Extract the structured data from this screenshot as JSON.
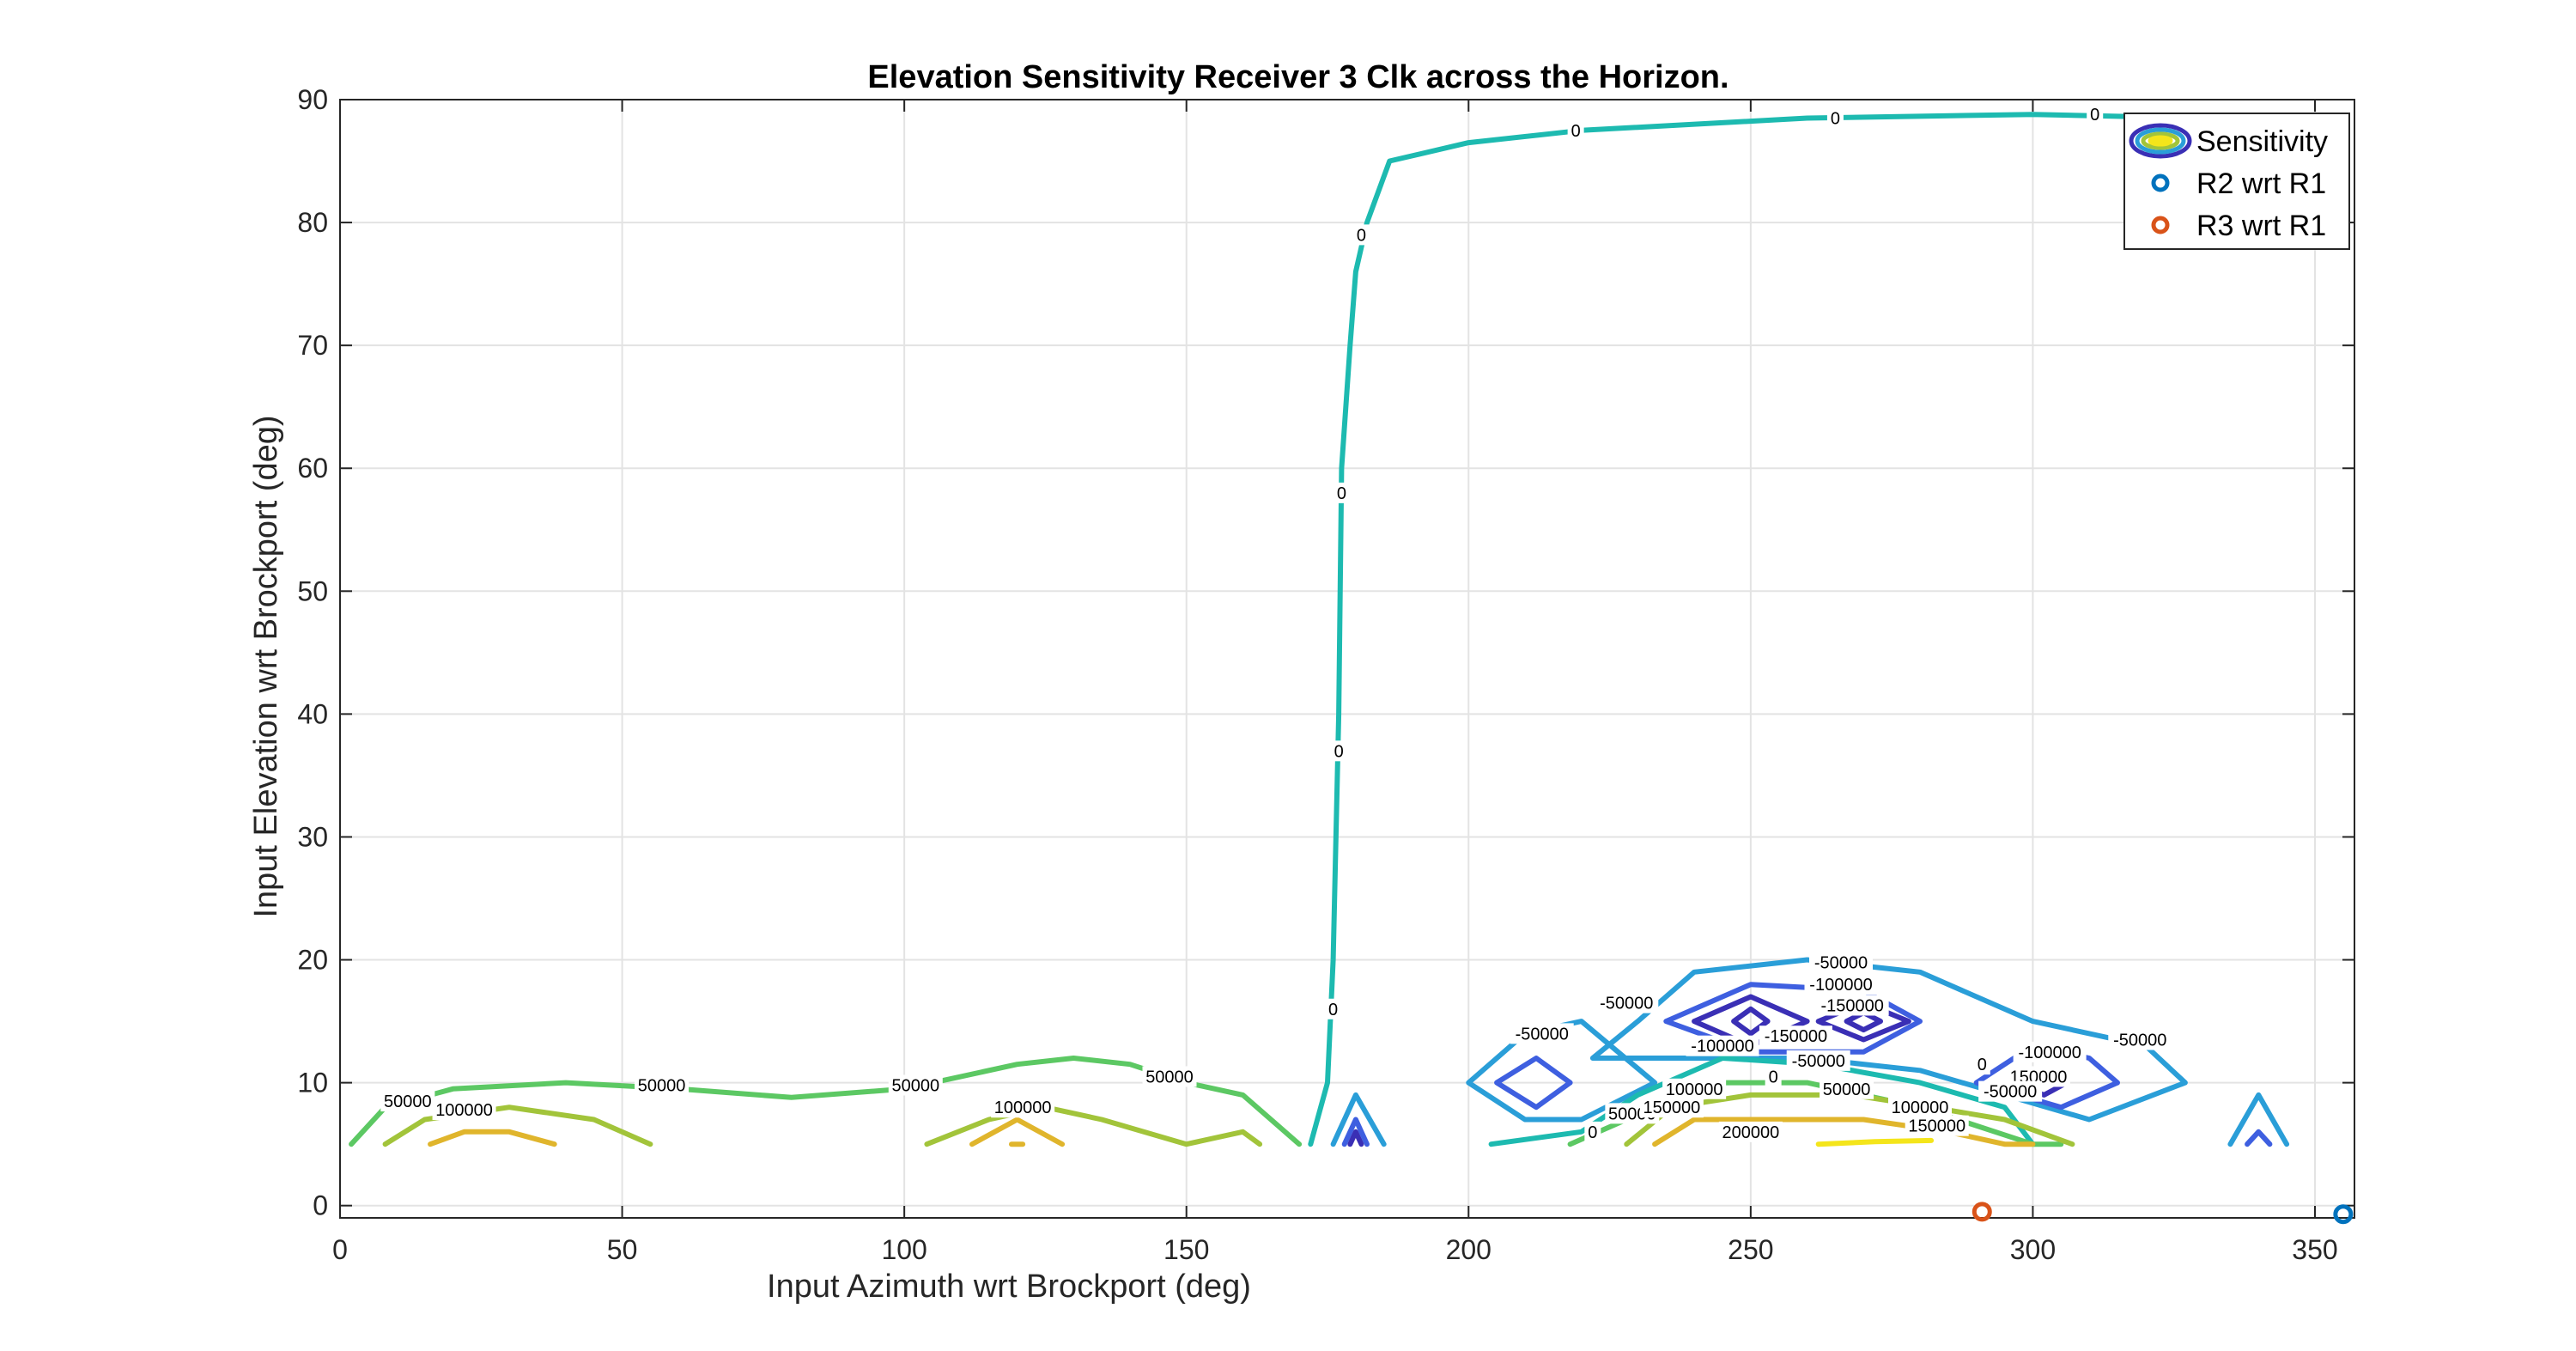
{
  "chart_data": {
    "type": "contour",
    "title": "Elevation Sensitivity Receiver 3 Clk across the Horizon.",
    "xlabel": "Input Azimuth wrt Brockport (deg)",
    "ylabel": "Input Elevation wrt Brockport (deg)",
    "xlim": [
      0,
      357
    ],
    "ylim": [
      -1,
      90
    ],
    "xticks": [
      0,
      50,
      100,
      150,
      200,
      250,
      300,
      350
    ],
    "yticks": [
      0,
      10,
      20,
      30,
      40,
      50,
      60,
      70,
      80,
      90
    ],
    "grid": true,
    "legend_position": "top-right",
    "legend": [
      {
        "label": "Sensitivity",
        "kind": "contour-swatch"
      },
      {
        "label": "R2 wrt R1",
        "kind": "marker",
        "color": "#0072BD"
      },
      {
        "label": "R3 wrt R1",
        "kind": "marker",
        "color": "#D95319"
      }
    ],
    "level_colors": {
      "-150000": "#3a2fb5",
      "-100000": "#3e5fe0",
      "-50000": "#2a9ed8",
      "0": "#1dbab0",
      "50000": "#5cc863",
      "100000": "#a2c43a",
      "150000": "#e0b52c",
      "200000": "#f4e51b"
    },
    "contours": [
      {
        "level": 0,
        "points": [
          [
            172,
            5
          ],
          [
            175,
            10
          ],
          [
            176,
            20
          ],
          [
            177,
            40
          ],
          [
            177.5,
            60
          ],
          [
            179,
            70
          ],
          [
            180,
            76
          ],
          [
            182,
            80
          ],
          [
            186,
            85
          ],
          [
            200,
            86.5
          ],
          [
            220,
            87.5
          ],
          [
            260,
            88.5
          ],
          [
            300,
            88.8
          ],
          [
            330,
            88.5
          ],
          [
            345,
            88
          ],
          [
            350,
            79
          ]
        ]
      },
      {
        "level": 50000,
        "points": [
          [
            2,
            5
          ],
          [
            8,
            8
          ],
          [
            20,
            9.5
          ],
          [
            40,
            10
          ],
          [
            60,
            9.5
          ],
          [
            80,
            8.8
          ],
          [
            100,
            9.5
          ],
          [
            120,
            11.5
          ],
          [
            130,
            12
          ],
          [
            140,
            11.5
          ],
          [
            150,
            10
          ],
          [
            160,
            9
          ],
          [
            170,
            5
          ]
        ]
      },
      {
        "level": 100000,
        "points": [
          [
            8,
            5
          ],
          [
            15,
            7
          ],
          [
            30,
            8
          ],
          [
            45,
            7
          ],
          [
            55,
            5
          ]
        ]
      },
      {
        "level": 100000,
        "points": [
          [
            104,
            5
          ],
          [
            115,
            7
          ],
          [
            125,
            8
          ],
          [
            135,
            7
          ],
          [
            150,
            5
          ],
          [
            160,
            6
          ],
          [
            163,
            5
          ]
        ]
      },
      {
        "level": 150000,
        "points": [
          [
            16,
            5
          ],
          [
            22,
            6
          ],
          [
            30,
            6
          ],
          [
            38,
            5
          ]
        ]
      },
      {
        "level": 150000,
        "points": [
          [
            112,
            5
          ],
          [
            120,
            7
          ],
          [
            128,
            5
          ]
        ]
      },
      {
        "level": 150000,
        "points": [
          [
            119,
            5
          ],
          [
            121,
            5
          ]
        ]
      },
      {
        "level": -50000,
        "points": [
          [
            176,
            5
          ],
          [
            180,
            9
          ],
          [
            185,
            5
          ]
        ]
      },
      {
        "level": -100000,
        "points": [
          [
            178,
            5
          ],
          [
            180,
            7
          ],
          [
            182,
            5
          ]
        ]
      },
      {
        "level": -150000,
        "points": [
          [
            179,
            5
          ],
          [
            180,
            6
          ],
          [
            181,
            5
          ]
        ]
      },
      {
        "level": -50000,
        "points": [
          [
            200,
            10
          ],
          [
            210,
            14
          ],
          [
            220,
            15
          ],
          [
            233,
            10
          ],
          [
            220,
            7
          ],
          [
            210,
            7
          ],
          [
            200,
            10
          ]
        ]
      },
      {
        "level": -100000,
        "points": [
          [
            205,
            10
          ],
          [
            212,
            12
          ],
          [
            218,
            10
          ],
          [
            212,
            8
          ],
          [
            205,
            10
          ]
        ]
      },
      {
        "level": -50000,
        "points": [
          [
            222,
            12
          ],
          [
            230,
            15
          ],
          [
            240,
            19
          ],
          [
            260,
            20
          ],
          [
            280,
            19
          ],
          [
            300,
            15
          ],
          [
            320,
            13
          ],
          [
            327,
            10
          ],
          [
            310,
            7
          ],
          [
            295,
            9
          ],
          [
            280,
            11
          ],
          [
            260,
            12
          ],
          [
            245,
            12
          ],
          [
            235,
            12
          ],
          [
            222,
            12
          ]
        ]
      },
      {
        "level": -100000,
        "points": [
          [
            235,
            15
          ],
          [
            250,
            18
          ],
          [
            270,
            17.5
          ],
          [
            280,
            15
          ],
          [
            270,
            12.5
          ],
          [
            250,
            12.5
          ],
          [
            235,
            15
          ]
        ]
      },
      {
        "level": -100000,
        "points": [
          [
            290,
            10
          ],
          [
            300,
            13
          ],
          [
            310,
            12
          ],
          [
            315,
            10
          ],
          [
            305,
            8
          ],
          [
            290,
            10
          ]
        ]
      },
      {
        "level": -150000,
        "points": [
          [
            240,
            15
          ],
          [
            250,
            17
          ],
          [
            260,
            15
          ],
          [
            250,
            13
          ],
          [
            240,
            15
          ]
        ]
      },
      {
        "level": -150000,
        "points": [
          [
            262,
            15
          ],
          [
            270,
            16.5
          ],
          [
            278,
            15
          ],
          [
            270,
            13.5
          ],
          [
            262,
            15
          ]
        ]
      },
      {
        "level": -150000,
        "points": [
          [
            296,
            10
          ],
          [
            302,
            11
          ],
          [
            306,
            10
          ],
          [
            302,
            9
          ],
          [
            296,
            10
          ]
        ]
      },
      {
        "level": -150000,
        "points": [
          [
            247,
            15
          ],
          [
            250,
            16
          ],
          [
            253,
            15
          ],
          [
            250,
            14
          ],
          [
            247,
            15
          ]
        ]
      },
      {
        "level": -150000,
        "points": [
          [
            267,
            15
          ],
          [
            270,
            15.7
          ],
          [
            273,
            15
          ],
          [
            270,
            14.3
          ],
          [
            267,
            15
          ]
        ]
      },
      {
        "level": -50000,
        "points": [
          [
            335,
            5
          ],
          [
            340,
            9
          ],
          [
            345,
            5
          ]
        ]
      },
      {
        "level": -100000,
        "points": [
          [
            338,
            5
          ],
          [
            340,
            6
          ],
          [
            342,
            5
          ]
        ]
      },
      {
        "level": 0,
        "points": [
          [
            204,
            5
          ],
          [
            220,
            6
          ],
          [
            230,
            9
          ],
          [
            245,
            12
          ],
          [
            262,
            11.5
          ],
          [
            280,
            10
          ],
          [
            295,
            8
          ],
          [
            300,
            5
          ]
        ]
      },
      {
        "level": 50000,
        "points": [
          [
            218,
            5
          ],
          [
            228,
            7
          ],
          [
            242,
            10
          ],
          [
            260,
            10
          ],
          [
            280,
            8
          ],
          [
            300,
            5
          ],
          [
            305,
            5
          ]
        ]
      },
      {
        "level": 100000,
        "points": [
          [
            228,
            5
          ],
          [
            236,
            8
          ],
          [
            250,
            9
          ],
          [
            268,
            9
          ],
          [
            282,
            8
          ],
          [
            295,
            7
          ],
          [
            307,
            5
          ]
        ]
      },
      {
        "level": 150000,
        "points": [
          [
            233,
            5
          ],
          [
            240,
            7
          ],
          [
            255,
            7
          ],
          [
            270,
            7
          ],
          [
            285,
            6
          ],
          [
            295,
            5
          ],
          [
            300,
            5
          ]
        ]
      },
      {
        "level": 200000,
        "points": [
          [
            262,
            5
          ],
          [
            272,
            5.2
          ],
          [
            282,
            5.3
          ]
        ]
      }
    ],
    "contour_labels": [
      {
        "text": "0",
        "x": 219,
        "y": 87.5
      },
      {
        "text": "0",
        "x": 265,
        "y": 88.5
      },
      {
        "text": "0",
        "x": 311,
        "y": 88.8
      },
      {
        "text": "0",
        "x": 181,
        "y": 79
      },
      {
        "text": "0",
        "x": 177.5,
        "y": 58
      },
      {
        "text": "0",
        "x": 177,
        "y": 37
      },
      {
        "text": "0",
        "x": 176,
        "y": 16
      },
      {
        "text": "50000",
        "x": 12,
        "y": 8.5
      },
      {
        "text": "50000",
        "x": 57,
        "y": 9.8
      },
      {
        "text": "50000",
        "x": 102,
        "y": 9.8
      },
      {
        "text": "50000",
        "x": 147,
        "y": 10.5
      },
      {
        "text": "100000",
        "x": 22,
        "y": 7.8
      },
      {
        "text": "100000",
        "x": 121,
        "y": 8
      },
      {
        "text": "-50000",
        "x": 213,
        "y": 14
      },
      {
        "text": "-50000",
        "x": 228,
        "y": 16.5
      },
      {
        "text": "-50000",
        "x": 266,
        "y": 19.8
      },
      {
        "text": "-50000",
        "x": 319,
        "y": 13.5
      },
      {
        "text": "-100000",
        "x": 266,
        "y": 18
      },
      {
        "text": "-150000",
        "x": 268,
        "y": 16.3
      },
      {
        "text": "-100000",
        "x": 245,
        "y": 13
      },
      {
        "text": "-150000",
        "x": 258,
        "y": 13.8
      },
      {
        "text": "-50000",
        "x": 262,
        "y": 11.8
      },
      {
        "text": "0",
        "x": 254,
        "y": 10.5
      },
      {
        "text": "0",
        "x": 222,
        "y": 6
      },
      {
        "text": "50000",
        "x": 229,
        "y": 7.5
      },
      {
        "text": "100000",
        "x": 240,
        "y": 9.5
      },
      {
        "text": "150000",
        "x": 236,
        "y": 8
      },
      {
        "text": "50000",
        "x": 267,
        "y": 9.5
      },
      {
        "text": "100000",
        "x": 280,
        "y": 8
      },
      {
        "text": "150000",
        "x": 283,
        "y": 6.5
      },
      {
        "text": "200000",
        "x": 250,
        "y": 6
      },
      {
        "text": "-100000",
        "x": 303,
        "y": 12.5
      },
      {
        "text": "150000",
        "x": 301,
        "y": 10.5
      },
      {
        "text": "-50000",
        "x": 296,
        "y": 9.3
      },
      {
        "text": "0",
        "x": 291,
        "y": 11.5
      }
    ],
    "series": [
      {
        "name": "R2 wrt R1",
        "type": "scatter",
        "x": [
          355
        ],
        "y": [
          -0.7
        ],
        "color": "#0072BD"
      },
      {
        "name": "R3 wrt R1",
        "type": "scatter",
        "x": [
          291
        ],
        "y": [
          -0.5
        ],
        "color": "#D95319"
      }
    ]
  }
}
